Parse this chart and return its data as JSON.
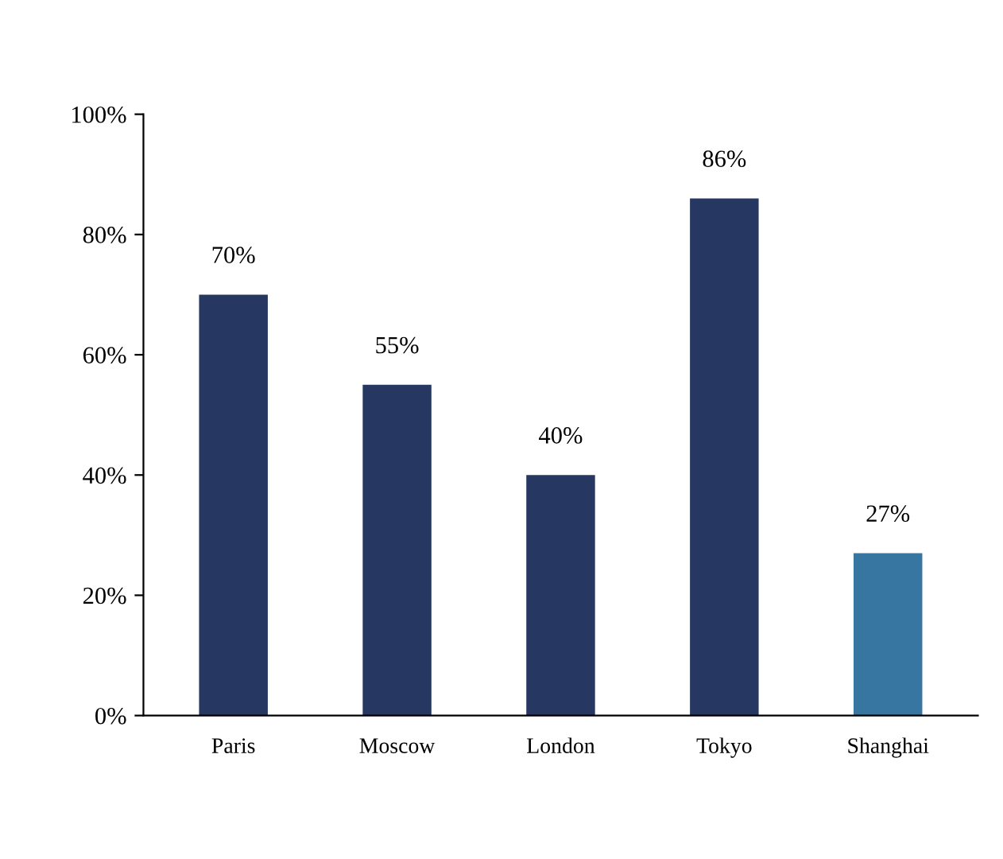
{
  "chart_data": {
    "type": "bar",
    "categories": [
      "Paris",
      "Moscow",
      "London",
      "Tokyo",
      "Shanghai"
    ],
    "values": [
      70,
      55,
      40,
      86,
      27
    ],
    "colors": [
      "#263862",
      "#263862",
      "#263862",
      "#263862",
      "#3776a0"
    ],
    "value_labels": [
      "70%",
      "55%",
      "40%",
      "86%",
      "27%"
    ],
    "ylim": [
      0,
      100
    ],
    "yticks": [
      {
        "value": 0,
        "label": "0%"
      },
      {
        "value": 20,
        "label": "20%"
      },
      {
        "value": 40,
        "label": "40%"
      },
      {
        "value": 60,
        "label": "60%"
      },
      {
        "value": 80,
        "label": "80%"
      },
      {
        "value": 100,
        "label": "100%"
      }
    ],
    "grid": false,
    "legend": false
  }
}
